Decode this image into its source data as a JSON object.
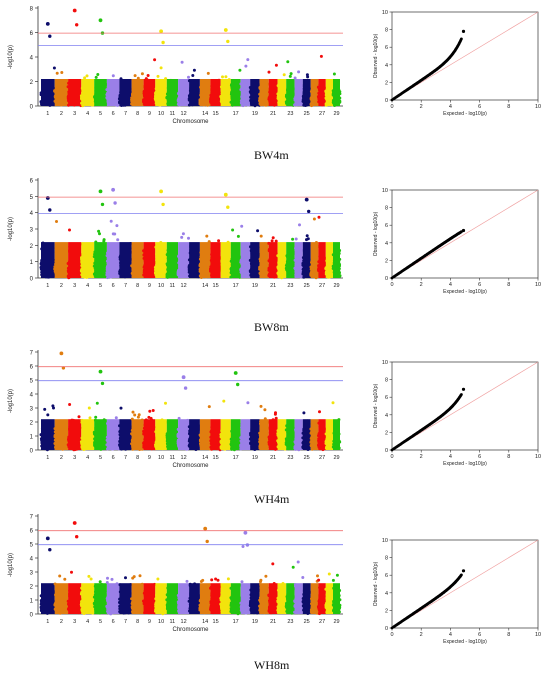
{
  "chart_data": [
    {
      "type": "scatter",
      "panel": "BW4m",
      "caption": "BW4m",
      "manhattan": {
        "xlabel": "Chromosome",
        "ylabel": "-log10(p)",
        "ylim": [
          0,
          8
        ],
        "yticks": [
          0,
          2,
          4,
          6,
          8
        ],
        "genomewide_threshold": 5.95,
        "suggestive_threshold": 4.95,
        "chromosome_labels": [
          "1",
          "2",
          "3",
          "4",
          "5",
          "6",
          "7",
          "8",
          "9",
          "10",
          "11",
          "12",
          "14",
          "15",
          "17",
          "19",
          "21",
          "23",
          "25",
          "27",
          "29"
        ],
        "peaks": [
          {
            "chromosome": 1,
            "value": 6.7
          },
          {
            "chromosome": 3,
            "value": 7.8
          },
          {
            "chromosome": 5,
            "value": 7.0
          },
          {
            "chromosome": 10,
            "value": 6.1
          },
          {
            "chromosome": 16,
            "value": 6.2
          }
        ]
      },
      "qq": {
        "xlabel": "Expected - log10(p)",
        "ylabel": "Observed - log10(p)",
        "xlim": [
          0,
          10
        ],
        "ylim": [
          0,
          10
        ],
        "ticks": [
          0,
          2,
          4,
          6,
          8,
          10
        ],
        "max_expected": 4.9,
        "max_observed": 7.8
      }
    },
    {
      "type": "scatter",
      "panel": "BW8m",
      "caption": "BW8m",
      "manhattan": {
        "xlabel": "",
        "ylabel": "-log10(p)",
        "ylim": [
          0,
          6
        ],
        "yticks": [
          0,
          1,
          2,
          3,
          4,
          5,
          6
        ],
        "genomewide_threshold": 4.95,
        "suggestive_threshold": 3.95,
        "chromosome_labels": [
          "1",
          "2",
          "3",
          "4",
          "5",
          "6",
          "7",
          "8",
          "9",
          "10",
          "11",
          "12",
          "14",
          "15",
          "17",
          "19",
          "21",
          "23",
          "25",
          "27",
          "29"
        ],
        "peaks": [
          {
            "chromosome": 1,
            "value": 4.9
          },
          {
            "chromosome": 5,
            "value": 5.3
          },
          {
            "chromosome": 6,
            "value": 5.4
          },
          {
            "chromosome": 10,
            "value": 5.3
          },
          {
            "chromosome": 16,
            "value": 5.1
          },
          {
            "chromosome": 25,
            "value": 4.8
          }
        ]
      },
      "qq": {
        "xlabel": "Expected - log10(p)",
        "ylabel": "Observed - log10(p)",
        "xlim": [
          0,
          10
        ],
        "ylim": [
          0,
          10
        ],
        "ticks": [
          0,
          2,
          4,
          6,
          8,
          10
        ],
        "max_expected": 4.9,
        "max_observed": 5.4
      }
    },
    {
      "type": "scatter",
      "panel": "WH4m",
      "caption": "WH4m",
      "manhattan": {
        "xlabel": "Chromosome",
        "ylabel": "-log10(p)",
        "ylim": [
          0,
          7
        ],
        "yticks": [
          0,
          1,
          2,
          3,
          4,
          5,
          6,
          7
        ],
        "genomewide_threshold": 5.95,
        "suggestive_threshold": 4.95,
        "chromosome_labels": [
          "1",
          "2",
          "3",
          "4",
          "5",
          "6",
          "7",
          "8",
          "9",
          "10",
          "11",
          "12",
          "14",
          "15",
          "17",
          "19",
          "21",
          "23",
          "25",
          "27",
          "29"
        ],
        "peaks": [
          {
            "chromosome": 2,
            "value": 6.9
          },
          {
            "chromosome": 5,
            "value": 5.6
          },
          {
            "chromosome": 12,
            "value": 5.2
          },
          {
            "chromosome": 17,
            "value": 5.5
          }
        ]
      },
      "qq": {
        "xlabel": "Expected - log10(p)",
        "ylabel": "Observed - log10(p)",
        "xlim": [
          0,
          10
        ],
        "ylim": [
          0,
          10
        ],
        "ticks": [
          0,
          2,
          4,
          6,
          8,
          10
        ],
        "max_expected": 4.9,
        "max_observed": 6.9
      }
    },
    {
      "type": "scatter",
      "panel": "WH8m",
      "caption": "WH8m",
      "manhattan": {
        "xlabel": "Chromosome",
        "ylabel": "-log10(p)",
        "ylim": [
          0,
          7
        ],
        "yticks": [
          0,
          1,
          2,
          3,
          4,
          5,
          6,
          7
        ],
        "genomewide_threshold": 5.95,
        "suggestive_threshold": 4.95,
        "chromosome_labels": [
          "1",
          "2",
          "3",
          "4",
          "5",
          "6",
          "7",
          "8",
          "9",
          "10",
          "11",
          "12",
          "14",
          "15",
          "17",
          "19",
          "21",
          "23",
          "25",
          "27",
          "29"
        ],
        "peaks": [
          {
            "chromosome": 1,
            "value": 5.4
          },
          {
            "chromosome": 3,
            "value": 6.5
          },
          {
            "chromosome": 14,
            "value": 6.1
          },
          {
            "chromosome": 18,
            "value": 5.8
          }
        ]
      },
      "qq": {
        "xlabel": "Expected - log10(p)",
        "ylabel": "Observed - log10(p)",
        "xlim": [
          0,
          10
        ],
        "ylim": [
          0,
          10
        ],
        "ticks": [
          0,
          2,
          4,
          6,
          8,
          10
        ],
        "max_expected": 4.9,
        "max_observed": 6.5
      }
    }
  ],
  "colors": {
    "chromosome_cycle": [
      "#0d0d6b",
      "#e07d10",
      "#f20c0c",
      "#f2e40c",
      "#22c40f",
      "#9a7fe8"
    ],
    "genomewide_line": "#f07070",
    "suggestive_line": "#8080f0",
    "qq_points": "#000000",
    "qq_diagonal": "#f0a0a0"
  }
}
